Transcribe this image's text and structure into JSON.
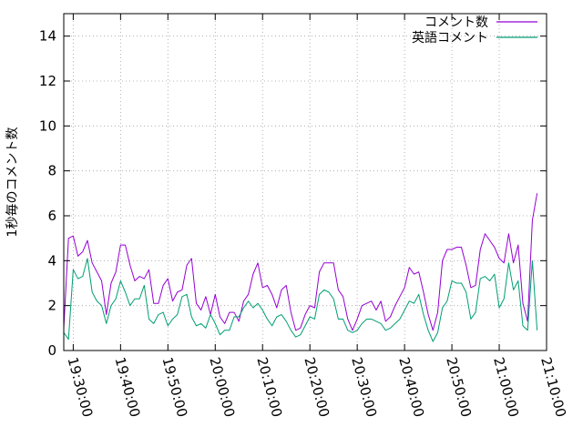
{
  "chart_data": {
    "type": "line",
    "ylabel": "1秒毎のコメント数",
    "ylim": [
      0,
      15
    ],
    "yticks": [
      "0",
      "2",
      "4",
      "6",
      "8",
      "10",
      "12",
      "14"
    ],
    "x_range": [
      "19:28:00",
      "21:10:00"
    ],
    "xticks": [
      "19:30:00",
      "19:40:00",
      "19:50:00",
      "20:00:00",
      "20:10:00",
      "20:20:00",
      "20:30:00",
      "20:40:00",
      "20:50:00",
      "21:00:00",
      "21:10:00"
    ],
    "legend_position": "top-right",
    "grid": true,
    "series": [
      {
        "name": "コメント数",
        "color": "#9400d3",
        "x": [
          "19:28:00",
          "19:29:00",
          "19:30:00",
          "19:31:00",
          "19:32:00",
          "19:33:00",
          "19:34:00",
          "19:35:00",
          "19:36:00",
          "19:37:00",
          "19:38:00",
          "19:39:00",
          "19:40:00",
          "19:41:00",
          "19:42:00",
          "19:43:00",
          "19:44:00",
          "19:45:00",
          "19:46:00",
          "19:47:00",
          "19:48:00",
          "19:49:00",
          "19:50:00",
          "19:51:00",
          "19:52:00",
          "19:53:00",
          "19:54:00",
          "19:55:00",
          "19:56:00",
          "19:57:00",
          "19:58:00",
          "19:59:00",
          "20:00:00",
          "20:01:00",
          "20:02:00",
          "20:03:00",
          "20:04:00",
          "20:05:00",
          "20:06:00",
          "20:07:00",
          "20:08:00",
          "20:09:00",
          "20:10:00",
          "20:11:00",
          "20:12:00",
          "20:13:00",
          "20:14:00",
          "20:15:00",
          "20:16:00",
          "20:17:00",
          "20:18:00",
          "20:19:00",
          "20:20:00",
          "20:21:00",
          "20:22:00",
          "20:23:00",
          "20:24:00",
          "20:25:00",
          "20:26:00",
          "20:27:00",
          "20:28:00",
          "20:29:00",
          "20:30:00",
          "20:31:00",
          "20:32:00",
          "20:33:00",
          "20:34:00",
          "20:35:00",
          "20:36:00",
          "20:37:00",
          "20:38:00",
          "20:39:00",
          "20:40:00",
          "20:41:00",
          "20:42:00",
          "20:43:00",
          "20:44:00",
          "20:45:00",
          "20:46:00",
          "20:47:00",
          "20:48:00",
          "20:49:00",
          "20:50:00",
          "20:51:00",
          "20:52:00",
          "20:53:00",
          "20:54:00",
          "20:55:00",
          "20:56:00",
          "20:57:00",
          "20:58:00",
          "20:59:00",
          "21:00:00",
          "21:01:00",
          "21:02:00",
          "21:03:00",
          "21:04:00",
          "21:05:00",
          "21:06:00",
          "21:07:00",
          "21:08:00"
        ],
        "values": [
          1.0,
          5.0,
          5.1,
          4.2,
          4.4,
          4.9,
          3.9,
          3.5,
          3.1,
          1.6,
          3.0,
          3.5,
          4.7,
          4.7,
          3.8,
          3.1,
          3.3,
          3.2,
          3.6,
          2.1,
          2.1,
          2.9,
          3.2,
          2.2,
          2.6,
          2.7,
          3.8,
          4.1,
          2.1,
          1.8,
          2.4,
          1.6,
          2.5,
          1.5,
          1.2,
          1.7,
          1.7,
          1.3,
          2.2,
          2.5,
          3.4,
          3.9,
          2.8,
          2.9,
          2.5,
          1.9,
          2.7,
          2.9,
          1.7,
          0.9,
          1.0,
          1.6,
          2.0,
          1.9,
          3.5,
          3.9,
          3.9,
          3.9,
          2.7,
          2.4,
          1.4,
          0.9,
          1.4,
          2.0,
          2.1,
          2.2,
          1.8,
          2.2,
          1.3,
          1.5,
          2.0,
          2.4,
          2.8,
          3.7,
          3.4,
          3.5,
          2.6,
          1.6,
          0.9,
          1.7,
          4.0,
          4.5,
          4.5,
          4.6,
          4.6,
          3.8,
          2.8,
          2.9,
          4.5,
          5.2,
          4.9,
          4.6,
          4.1,
          3.9,
          5.2,
          3.9,
          4.7,
          2.1,
          1.3,
          5.8,
          7.0
        ]
      },
      {
        "name": "英語コメント",
        "color": "#009e73",
        "x": [
          "19:28:00",
          "19:29:00",
          "19:30:00",
          "19:31:00",
          "19:32:00",
          "19:33:00",
          "19:34:00",
          "19:35:00",
          "19:36:00",
          "19:37:00",
          "19:38:00",
          "19:39:00",
          "19:40:00",
          "19:41:00",
          "19:42:00",
          "19:43:00",
          "19:44:00",
          "19:45:00",
          "19:46:00",
          "19:47:00",
          "19:48:00",
          "19:49:00",
          "19:50:00",
          "19:51:00",
          "19:52:00",
          "19:53:00",
          "19:54:00",
          "19:55:00",
          "19:56:00",
          "19:57:00",
          "19:58:00",
          "19:59:00",
          "20:00:00",
          "20:01:00",
          "20:02:00",
          "20:03:00",
          "20:04:00",
          "20:05:00",
          "20:06:00",
          "20:07:00",
          "20:08:00",
          "20:09:00",
          "20:10:00",
          "20:11:00",
          "20:12:00",
          "20:13:00",
          "20:14:00",
          "20:15:00",
          "20:16:00",
          "20:17:00",
          "20:18:00",
          "20:19:00",
          "20:20:00",
          "20:21:00",
          "20:22:00",
          "20:23:00",
          "20:24:00",
          "20:25:00",
          "20:26:00",
          "20:27:00",
          "20:28:00",
          "20:29:00",
          "20:30:00",
          "20:31:00",
          "20:32:00",
          "20:33:00",
          "20:34:00",
          "20:35:00",
          "20:36:00",
          "20:37:00",
          "20:38:00",
          "20:39:00",
          "20:40:00",
          "20:41:00",
          "20:42:00",
          "20:43:00",
          "20:44:00",
          "20:45:00",
          "20:46:00",
          "20:47:00",
          "20:48:00",
          "20:49:00",
          "20:50:00",
          "20:51:00",
          "20:52:00",
          "20:53:00",
          "20:54:00",
          "20:55:00",
          "20:56:00",
          "20:57:00",
          "20:58:00",
          "20:59:00",
          "21:00:00",
          "21:01:00",
          "21:02:00",
          "21:03:00",
          "21:04:00",
          "21:05:00",
          "21:06:00",
          "21:07:00",
          "21:08:00"
        ],
        "values": [
          0.8,
          0.5,
          3.6,
          3.2,
          3.3,
          4.1,
          2.6,
          2.2,
          2.0,
          1.2,
          2.0,
          2.3,
          3.1,
          2.6,
          2.0,
          2.3,
          2.3,
          2.9,
          1.4,
          1.2,
          1.6,
          1.7,
          1.1,
          1.4,
          1.6,
          2.4,
          2.5,
          1.5,
          1.1,
          1.2,
          1.0,
          1.6,
          1.2,
          0.7,
          0.9,
          0.9,
          1.5,
          1.5,
          1.9,
          2.2,
          1.9,
          2.1,
          1.8,
          1.4,
          1.1,
          1.5,
          1.6,
          1.3,
          0.9,
          0.6,
          0.7,
          1.1,
          1.5,
          1.4,
          2.5,
          2.7,
          2.6,
          2.3,
          1.4,
          1.4,
          0.9,
          0.8,
          0.9,
          1.2,
          1.4,
          1.4,
          1.3,
          1.2,
          0.9,
          1.0,
          1.2,
          1.4,
          1.8,
          2.2,
          2.1,
          2.5,
          1.6,
          0.9,
          0.4,
          0.8,
          1.9,
          2.2,
          3.1,
          3.0,
          3.0,
          2.6,
          1.4,
          1.7,
          3.2,
          3.3,
          3.1,
          3.4,
          1.9,
          2.3,
          3.9,
          2.7,
          3.1,
          1.1,
          0.9,
          4.0,
          0.9
        ]
      }
    ]
  }
}
